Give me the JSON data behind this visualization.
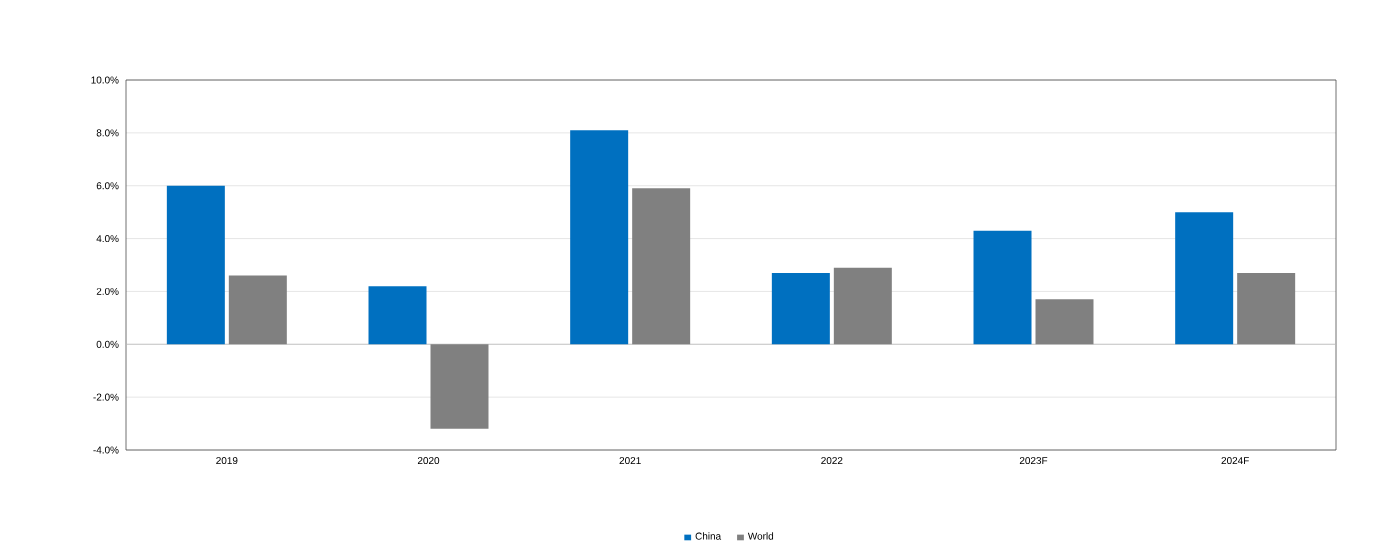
{
  "chart_data": {
    "type": "bar",
    "categories": [
      "2019",
      "2020",
      "2021",
      "2022",
      "2023F",
      "2024F"
    ],
    "series": [
      {
        "name": "China",
        "color": "#0070c0",
        "values": [
          6.0,
          2.2,
          8.1,
          2.7,
          4.3,
          5.0
        ]
      },
      {
        "name": "World",
        "color": "#808080",
        "values": [
          2.6,
          -3.2,
          5.9,
          2.9,
          1.7,
          2.7
        ]
      }
    ],
    "ylim": [
      -4,
      10
    ],
    "yticks": [
      {
        "value": -4,
        "label": "-4.0%"
      },
      {
        "value": -2,
        "label": "-2.0%"
      },
      {
        "value": 0,
        "label": "0.0%"
      },
      {
        "value": 2,
        "label": "2.0%"
      },
      {
        "value": 4,
        "label": "4.0%"
      },
      {
        "value": 6,
        "label": "6.0%"
      },
      {
        "value": 8,
        "label": "8.0%"
      },
      {
        "value": 10,
        "label": "10.0%"
      }
    ],
    "grid": "y",
    "legend": "bottom"
  }
}
